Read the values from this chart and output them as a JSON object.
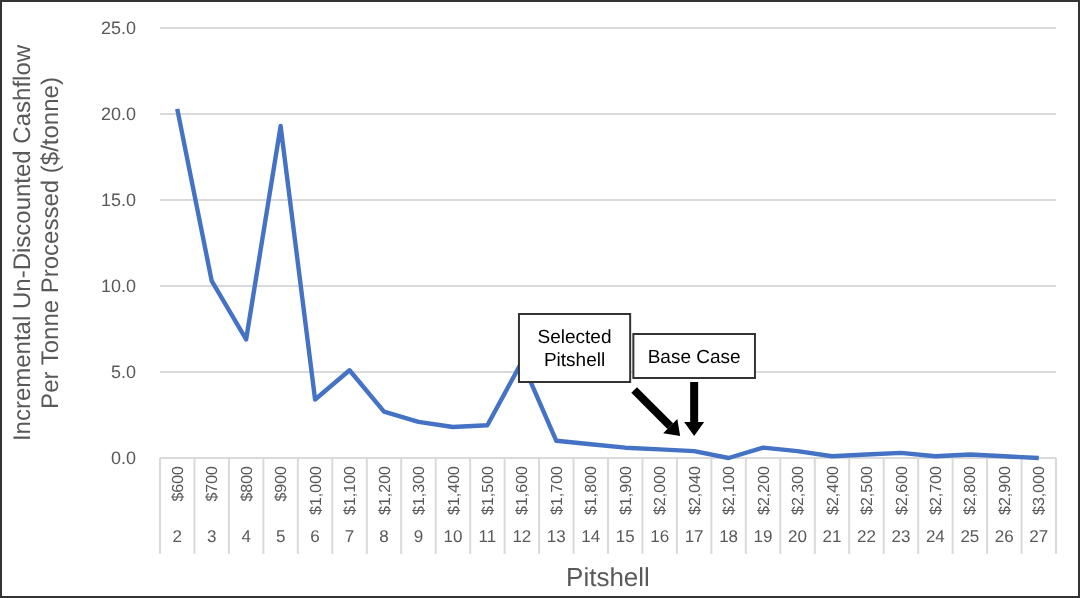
{
  "chart_data": {
    "type": "line",
    "xlabel": "Pitshell",
    "ylabel": "Incremental Un-Discounted Cashflow\nPer Tonne Processed ($/tonne)",
    "categories": [
      "$600\n2",
      "$700\n3",
      "$800\n4",
      "$900\n5",
      "$1,000\n6",
      "$1,100\n7",
      "$1,200\n8",
      "$1,300\n9",
      "$1,400\n10",
      "$1,500\n11",
      "$1,600\n12",
      "$1,700\n13",
      "$1,800\n14",
      "$1,900\n15",
      "$2,000\n16",
      "$2,040\n17",
      "$2,100\n18",
      "$2,200\n19",
      "$2,300\n20",
      "$2,400\n21",
      "$2,500\n22",
      "$2,600\n23",
      "$2,700\n24",
      "$2,800\n25",
      "$2,900\n26",
      "$3,000\n27"
    ],
    "series": [
      {
        "color": "#4472c4",
        "values": [
          20.3,
          10.3,
          6.9,
          19.3,
          3.4,
          5.1,
          2.7,
          2.1,
          1.8,
          1.9,
          5.6,
          1.0,
          0.8,
          0.6,
          0.5,
          0.4,
          0.0,
          0.6,
          0.4,
          0.1,
          0.2,
          0.3,
          0.1,
          0.2,
          0.1,
          0.0
        ]
      }
    ],
    "ylim": [
      0,
      25
    ],
    "yticks": [
      {
        "value": 0,
        "label": "0.0"
      },
      {
        "value": 5,
        "label": "5.0"
      },
      {
        "value": 10,
        "label": "10.0"
      },
      {
        "value": 15,
        "label": "15.0"
      },
      {
        "value": 20,
        "label": "20.0"
      },
      {
        "value": 25,
        "label": "25.0"
      }
    ],
    "grid": "y",
    "marker": "none",
    "line_style": "solid",
    "annotations": [
      "Selected\nPitshell",
      "Base Case"
    ]
  }
}
